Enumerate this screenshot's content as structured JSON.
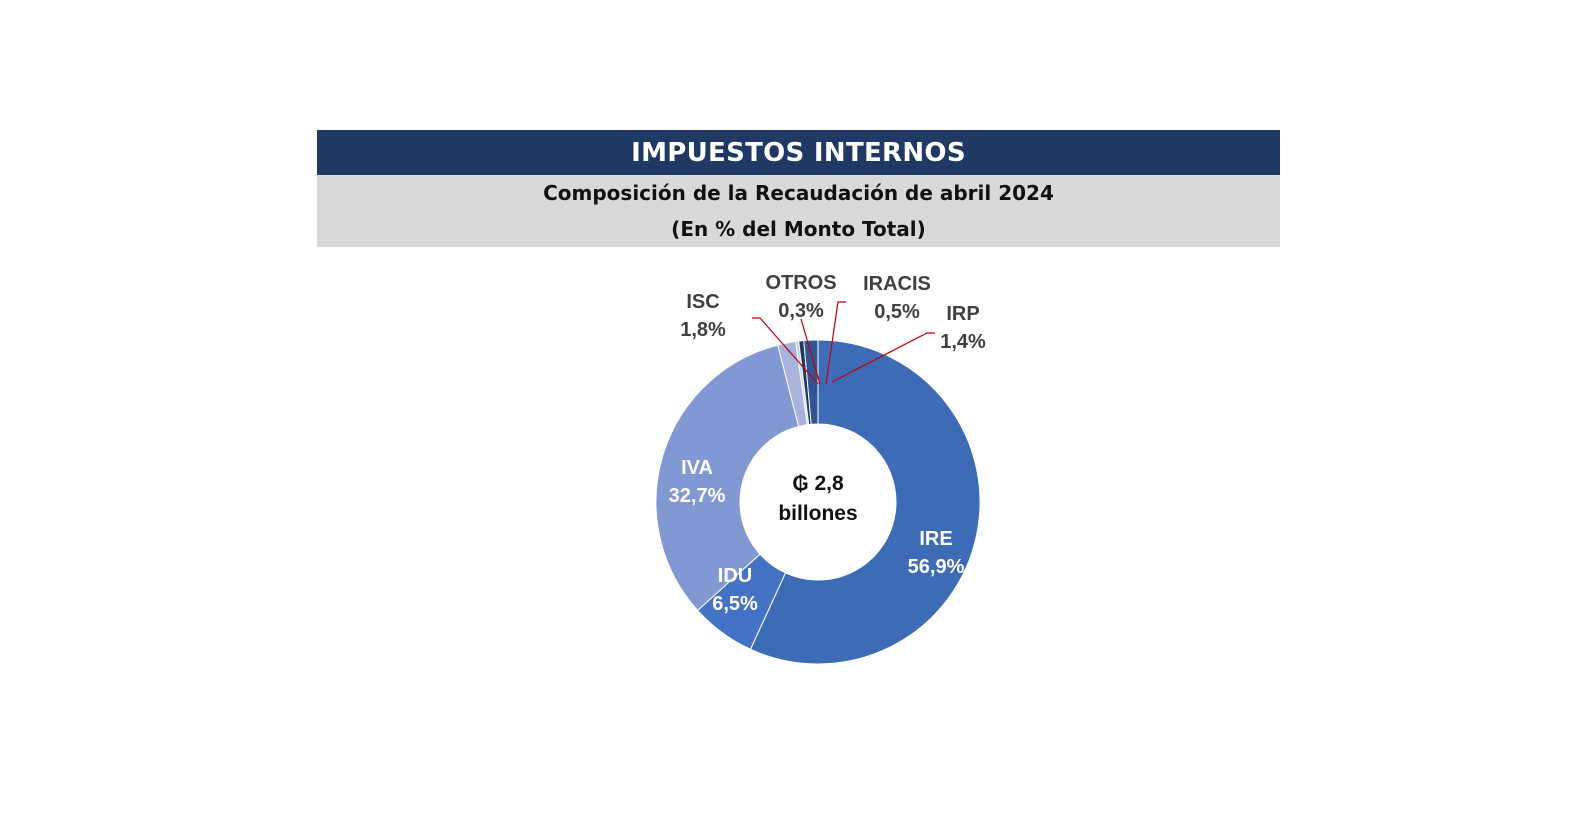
{
  "header": {
    "title": "IMPUESTOS INTERNOS",
    "subtitle": "Composición de la Recaudación de abril 2024",
    "subtitle2": "(En % del Monto Total)"
  },
  "chart_data": {
    "type": "pie",
    "donut": true,
    "center_label_line1": "₲ 2,8",
    "center_label_line2": "billones",
    "slices": [
      {
        "name": "IRE",
        "value": 56.9,
        "label": "56,9%",
        "color": "#3d6bb5",
        "label_color": "#ffffff"
      },
      {
        "name": "IDU",
        "value": 6.5,
        "label": "6,5%",
        "color": "#4472c4",
        "label_color": "#ffffff"
      },
      {
        "name": "IVA",
        "value": 32.7,
        "label": "32,7%",
        "color": "#8298d2",
        "label_color": "#ffffff"
      },
      {
        "name": "ISC",
        "value": 1.8,
        "label": "1,8%",
        "color": "#a8b4dc",
        "label_color": "#404040"
      },
      {
        "name": "OTROS",
        "value": 0.3,
        "label": "0,3%",
        "color": "#c5cde8",
        "label_color": "#404040"
      },
      {
        "name": "IRACIS",
        "value": 0.5,
        "label": "0,5%",
        "color": "#203864",
        "label_color": "#404040"
      },
      {
        "name": "IRP",
        "value": 1.4,
        "label": "1,4%",
        "color": "#2f5597",
        "label_color": "#404040"
      }
    ],
    "leader_line_color": "#c00000"
  }
}
